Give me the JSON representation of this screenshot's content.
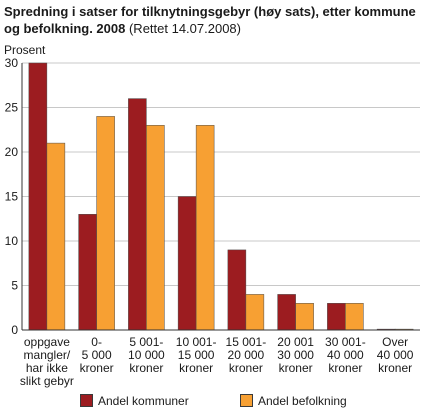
{
  "title_main": "Spredning i satser for tilknytningsgebyr (høy sats), etter kommune og befolkning. 2008",
  "title_note": " (Rettet 14.07.2008)",
  "colors": {
    "series1": "#9c1c20",
    "series2": "#f7a033",
    "grid": "#c8c8c8",
    "axis": "#333333"
  },
  "chart_data": {
    "type": "bar",
    "ylabel": "Prosent",
    "ylim": [
      0,
      30
    ],
    "yticks": [
      0,
      5,
      10,
      15,
      20,
      25,
      30
    ],
    "grid": "horizontal",
    "legend": "bottom",
    "categories": [
      [
        "oppgave",
        "mangler/",
        "har ikke",
        "slikt gebyr"
      ],
      [
        "0-",
        "5 000",
        "kroner"
      ],
      [
        "5 001-",
        "10 000",
        "kroner"
      ],
      [
        "10 001-",
        "15 000",
        "kroner"
      ],
      [
        "15 001-",
        "20 000",
        "kroner"
      ],
      [
        "20 001",
        "30 000",
        "kroner"
      ],
      [
        "30 001-",
        "40 000",
        "kroner"
      ],
      [
        "Over",
        "40 000",
        "kroner"
      ]
    ],
    "series": [
      {
        "name": "Andel kommuner",
        "values": [
          30,
          13,
          26,
          15,
          9,
          4,
          3,
          0.1
        ]
      },
      {
        "name": "Andel befolkning",
        "values": [
          21,
          24,
          23,
          23,
          4,
          3,
          3,
          0.1
        ]
      }
    ]
  }
}
